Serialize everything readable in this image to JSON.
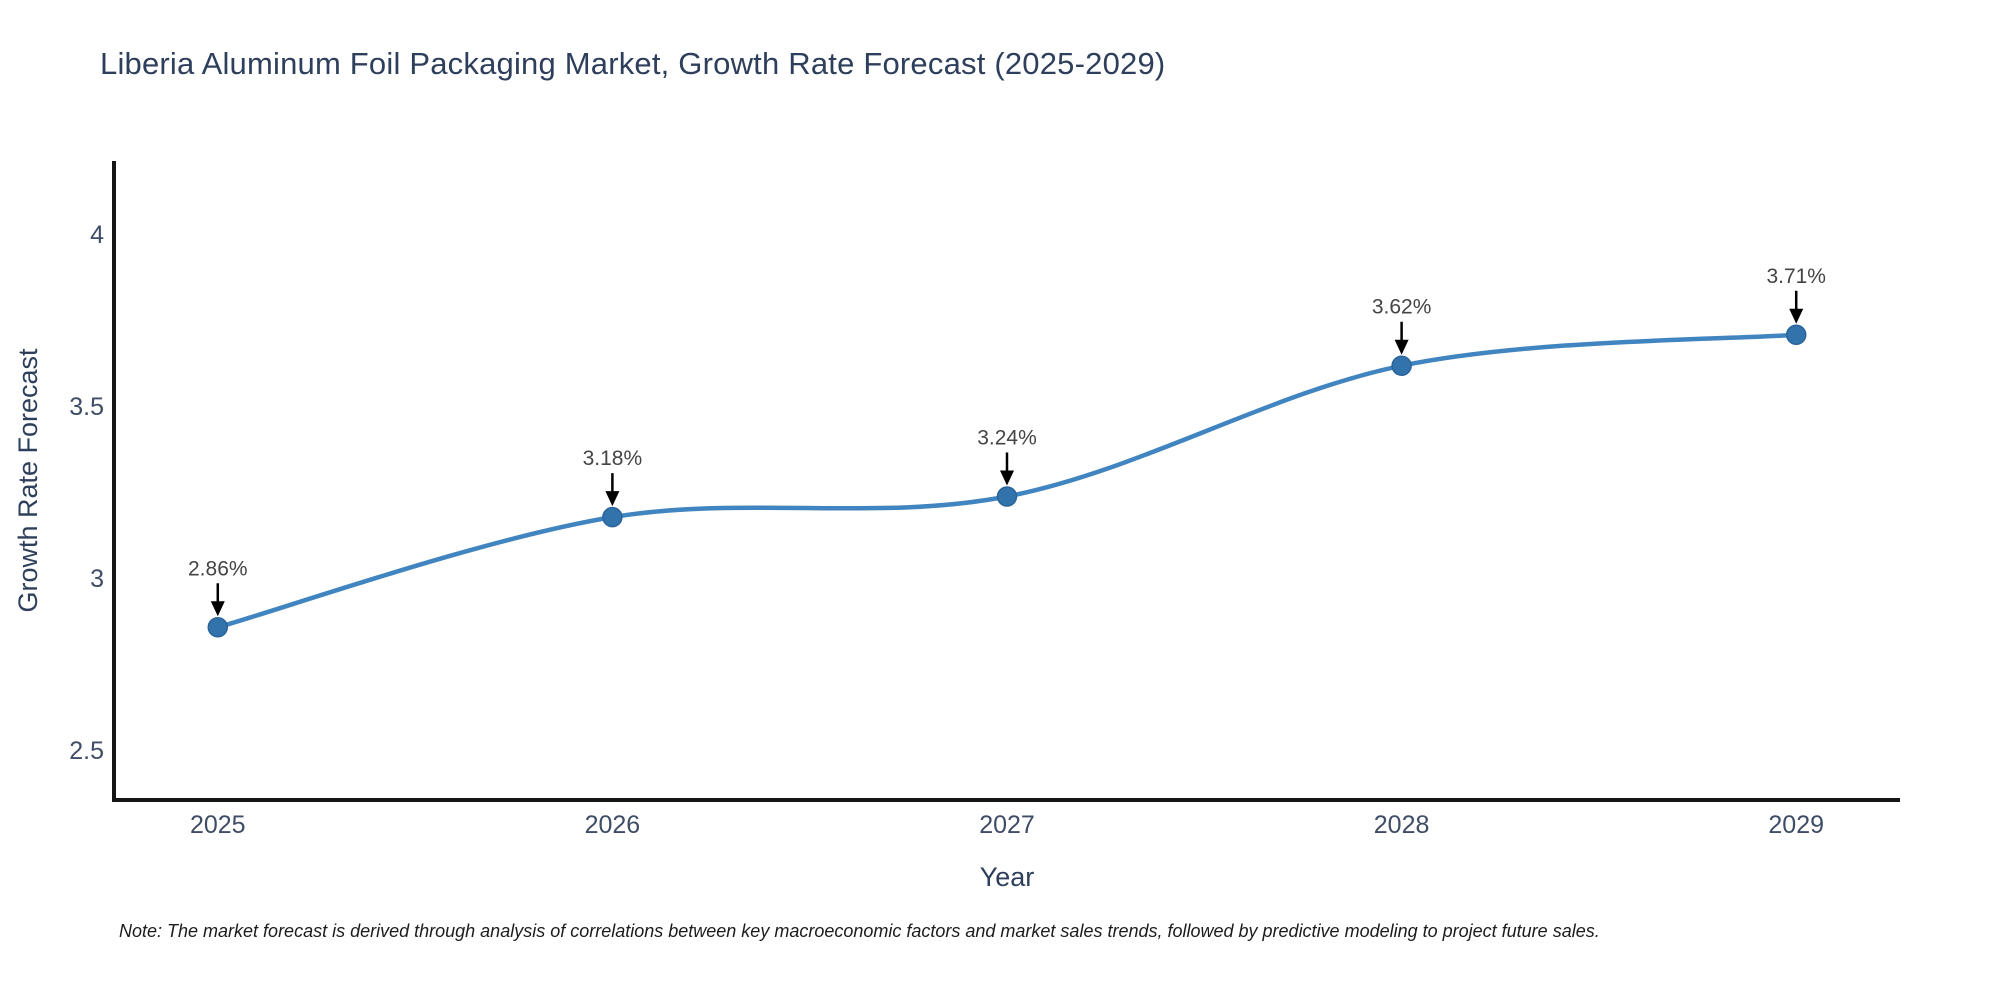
{
  "title": "Liberia Aluminum Foil Packaging Market, Growth Rate Forecast (2025-2029)",
  "note": "Note: The market forecast is derived through analysis of correlations between key macroeconomic factors and market sales trends, followed by predictive modeling to project future sales.",
  "chart_data": {
    "type": "line",
    "title": "Liberia Aluminum Foil Packaging Market, Growth Rate Forecast (2025-2029)",
    "x": [
      2025,
      2026,
      2027,
      2028,
      2029
    ],
    "series": [
      {
        "name": "Growth Rate Forecast",
        "values": [
          2.86,
          3.18,
          3.24,
          3.62,
          3.71
        ],
        "point_labels": [
          "2.86%",
          "3.18%",
          "3.24%",
          "3.62%",
          "3.71%"
        ]
      }
    ],
    "xlabel": "Year",
    "ylabel": "Growth Rate Forecast",
    "xticks": [
      "2025",
      "2026",
      "2027",
      "2028",
      "2029"
    ],
    "yticks": [
      2.5,
      3,
      3.5,
      4
    ],
    "ytick_labels": [
      "2.5",
      "3",
      "3.5",
      "4"
    ],
    "xlim": [
      2024.737,
      2029.263
    ],
    "ylim": [
      2.358,
      4.215
    ],
    "grid": false,
    "legend": "none",
    "line_shape": "spline",
    "colors": {
      "line": "#4185c0",
      "marker": "#3273ac",
      "marker_edge": "#2a649a",
      "axis_line": "#161616",
      "arrow": "#000000",
      "annotation_text": "#444444",
      "tick_text": "#3e4c66",
      "title_text": "#2e3f5c"
    }
  }
}
